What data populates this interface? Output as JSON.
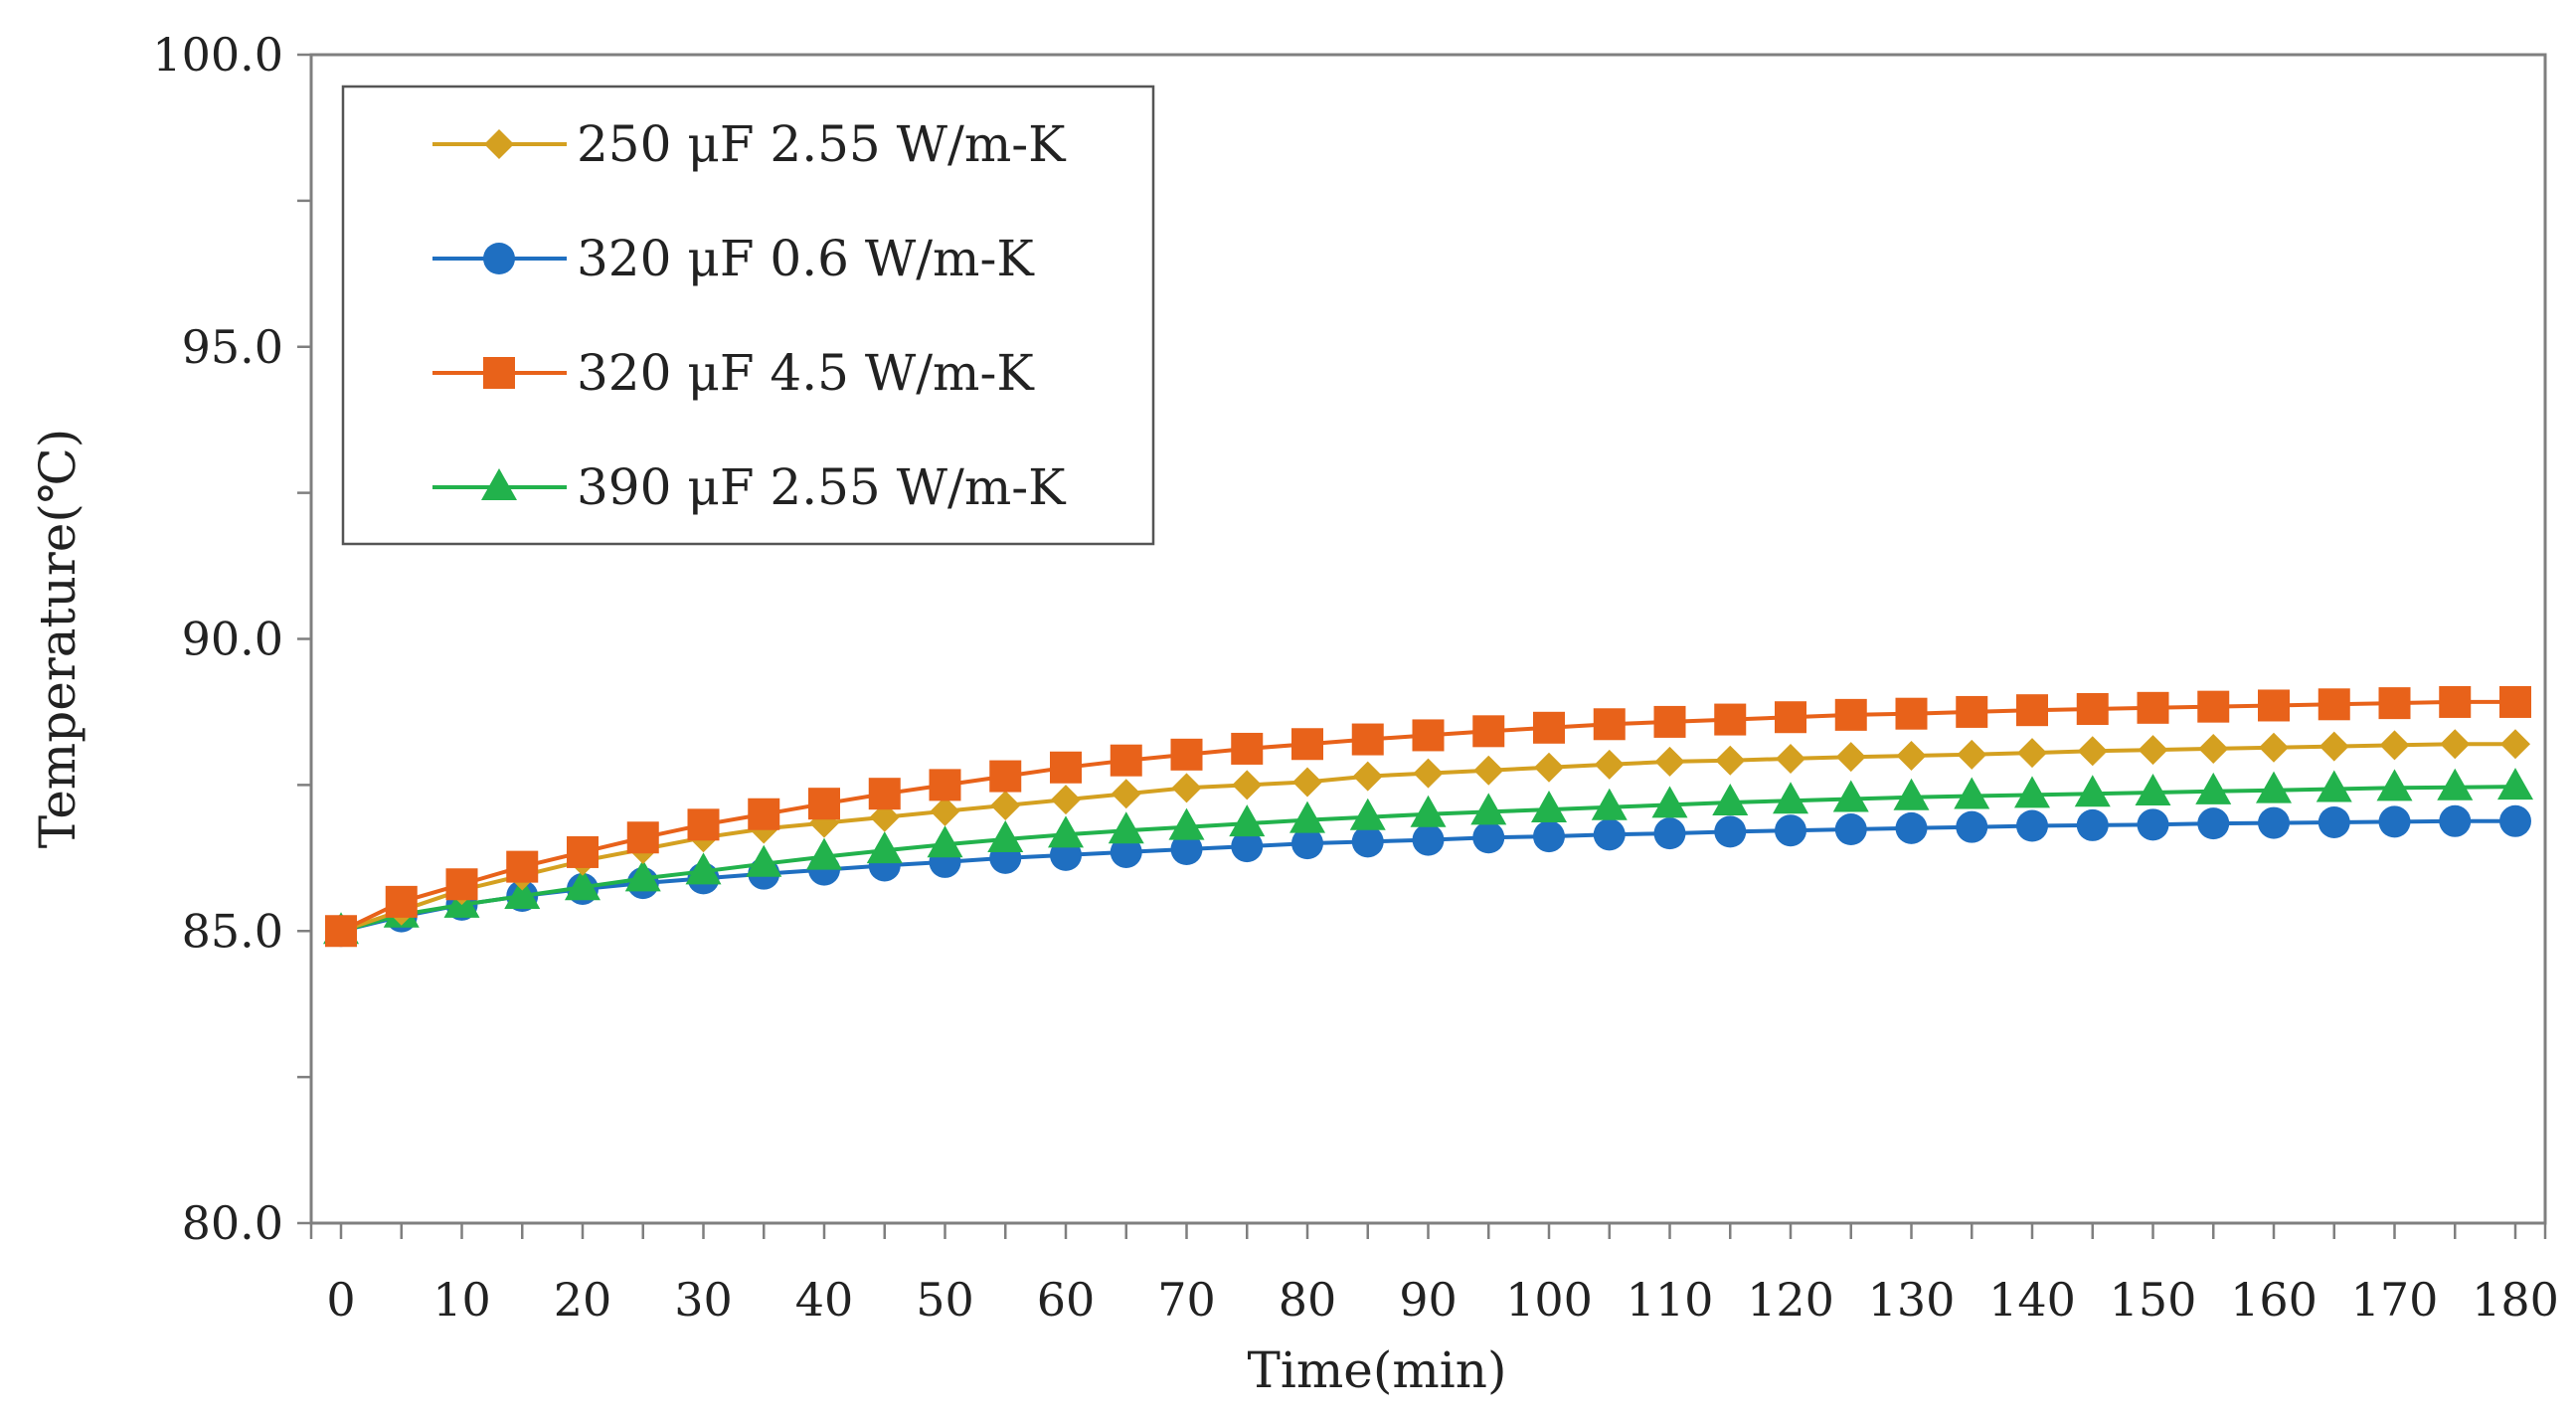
{
  "chart_data": {
    "type": "line",
    "title": "",
    "xlabel": "Time(min)",
    "ylabel": "Temperature(℃)",
    "xlim": [
      0,
      180
    ],
    "ylim": [
      80,
      100
    ],
    "x_ticks": [
      0,
      10,
      20,
      30,
      40,
      50,
      60,
      70,
      80,
      90,
      100,
      110,
      120,
      130,
      140,
      150,
      160,
      170,
      180
    ],
    "y_ticks": [
      "80.0",
      "85.0",
      "90.0",
      "95.0",
      "100.0"
    ],
    "legend_position": "top-left",
    "x": [
      0,
      5,
      10,
      15,
      20,
      25,
      30,
      35,
      40,
      45,
      50,
      55,
      60,
      65,
      70,
      75,
      80,
      85,
      90,
      95,
      100,
      105,
      110,
      115,
      120,
      125,
      130,
      135,
      140,
      145,
      150,
      155,
      160,
      165,
      170,
      175,
      180
    ],
    "series": [
      {
        "name": "250 μF 2.55 W/m-K",
        "color": "#D4A020",
        "marker": "diamond",
        "values": [
          85.0,
          85.35,
          85.7,
          85.95,
          86.2,
          86.4,
          86.6,
          86.75,
          86.85,
          86.95,
          87.05,
          87.15,
          87.25,
          87.35,
          87.45,
          87.5,
          87.55,
          87.65,
          87.7,
          87.75,
          87.8,
          87.85,
          87.9,
          87.92,
          87.95,
          87.98,
          88.0,
          88.02,
          88.05,
          88.08,
          88.1,
          88.12,
          88.14,
          88.16,
          88.18,
          88.2,
          88.2
        ]
      },
      {
        "name": "320 μF 0.6 W/m-K",
        "color": "#1F6FC1",
        "marker": "circle",
        "values": [
          85.0,
          85.25,
          85.45,
          85.6,
          85.72,
          85.82,
          85.9,
          85.98,
          86.05,
          86.12,
          86.18,
          86.25,
          86.3,
          86.35,
          86.4,
          86.45,
          86.5,
          86.53,
          86.56,
          86.6,
          86.62,
          86.65,
          86.67,
          86.7,
          86.72,
          86.74,
          86.76,
          86.78,
          86.8,
          86.81,
          86.82,
          86.84,
          86.85,
          86.86,
          86.87,
          86.88,
          86.88
        ]
      },
      {
        "name": "320 μF 4.5 W/m-K",
        "color": "#E8621A",
        "marker": "square",
        "values": [
          85.0,
          85.5,
          85.8,
          86.1,
          86.35,
          86.6,
          86.82,
          87.0,
          87.18,
          87.35,
          87.5,
          87.65,
          87.8,
          87.92,
          88.02,
          88.12,
          88.2,
          88.28,
          88.35,
          88.42,
          88.48,
          88.54,
          88.58,
          88.62,
          88.66,
          88.7,
          88.72,
          88.75,
          88.78,
          88.8,
          88.82,
          88.84,
          88.86,
          88.88,
          88.9,
          88.92,
          88.92
        ]
      },
      {
        "name": "390 μF 2.55 W/m-K",
        "color": "#22B24C",
        "marker": "triangle",
        "values": [
          85.0,
          85.28,
          85.45,
          85.6,
          85.75,
          85.9,
          86.02,
          86.15,
          86.27,
          86.38,
          86.48,
          86.57,
          86.65,
          86.72,
          86.78,
          86.84,
          86.9,
          86.95,
          87.0,
          87.04,
          87.08,
          87.12,
          87.16,
          87.2,
          87.23,
          87.26,
          87.29,
          87.31,
          87.33,
          87.35,
          87.37,
          87.39,
          87.41,
          87.43,
          87.45,
          87.46,
          87.47
        ]
      }
    ]
  }
}
